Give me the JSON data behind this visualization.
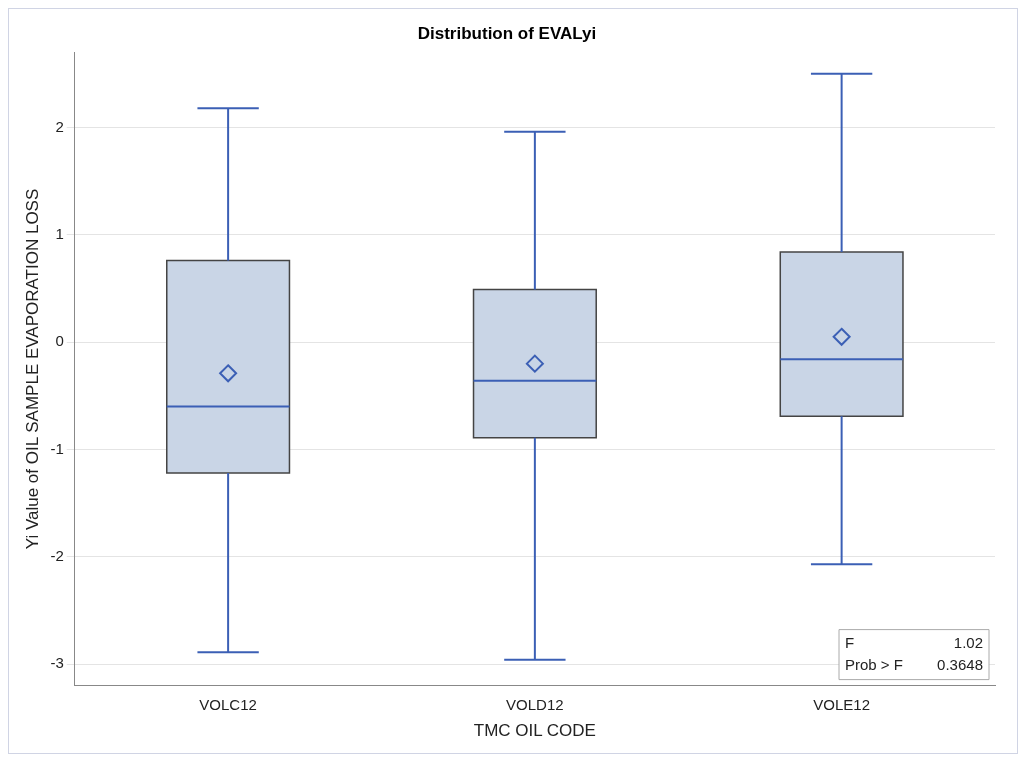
{
  "chart_data": {
    "type": "box",
    "title": "Distribution of EVALyi",
    "xlabel": "TMC OIL CODE",
    "ylabel": "Yi Value of OIL SAMPLE EVAPORATION LOSS",
    "categories": [
      "VOLC12",
      "VOLD12",
      "VOLE12"
    ],
    "boxes": [
      {
        "low": -2.89,
        "q1": -1.22,
        "median": -0.6,
        "q3": 0.76,
        "high": 2.18,
        "mean": -0.29
      },
      {
        "low": -2.96,
        "q1": -0.89,
        "median": -0.36,
        "q3": 0.49,
        "high": 1.96,
        "mean": -0.2
      },
      {
        "low": -2.07,
        "q1": -0.69,
        "median": -0.16,
        "q3": 0.84,
        "high": 2.5,
        "mean": 0.05
      }
    ],
    "color": "#c9d5e6",
    "marker": "diamond",
    "ylim": [
      -3.2,
      2.7
    ],
    "yticks": [
      -3,
      -2,
      -1,
      0,
      1,
      2
    ],
    "grid": "y",
    "legend": false,
    "annotations": [
      "F 1.02",
      "Prob > F 0.3648"
    ]
  }
}
